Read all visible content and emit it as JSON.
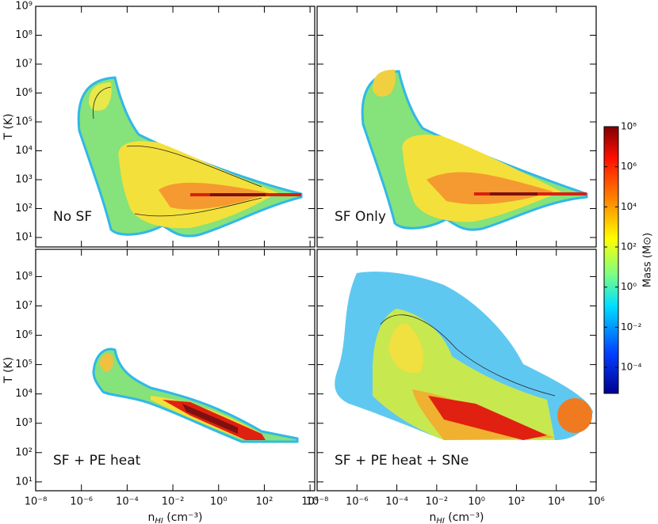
{
  "chart_data": [
    {
      "type": "phase-diagram",
      "label": "No SF",
      "y_label": "T (K)",
      "log": true,
      "xlim": [
        1e-08,
        16000
      ],
      "ylim": [
        4.7,
        1000000000.0
      ],
      "yticks": [
        {
          "value": 10,
          "label": "10¹"
        },
        {
          "value": 100,
          "label": "10²"
        },
        {
          "value": 1000,
          "label": "10³"
        },
        {
          "value": 10000,
          "label": "10⁴"
        },
        {
          "value": 100000,
          "label": "10⁵"
        },
        {
          "value": 1000000,
          "label": "10⁶"
        },
        {
          "value": 10000000,
          "label": "10⁷"
        },
        {
          "value": 100000000,
          "label": "10⁸"
        },
        {
          "value": 1000000000,
          "label": "10⁹"
        }
      ]
    },
    {
      "type": "phase-diagram",
      "label": "SF Only",
      "log": true,
      "xlim": [
        1e-08,
        1000000
      ],
      "ylim": [
        4.7,
        1000000000.0
      ]
    },
    {
      "type": "phase-diagram",
      "label": "SF + PE heat",
      "y_label": "T (K)",
      "log": true,
      "x_label": {
        "symbol": "n",
        "subscript": "HI",
        "unit": " (cm⁻³)"
      },
      "xlim": [
        1e-08,
        16000
      ],
      "ylim": [
        5,
        850000000
      ],
      "xticks": [
        {
          "value": 1e-08,
          "label": "10⁻⁸"
        },
        {
          "value": 1e-06,
          "label": "10⁻⁶"
        },
        {
          "value": 0.0001,
          "label": "10⁻⁴"
        },
        {
          "value": 0.01,
          "label": "10⁻²"
        },
        {
          "value": 1,
          "label": "10⁰"
        },
        {
          "value": 100,
          "label": "10²"
        },
        {
          "value": 10000,
          "label": "10⁴"
        }
      ],
      "yticks": [
        {
          "value": 10,
          "label": "10¹"
        },
        {
          "value": 100,
          "label": "10²"
        },
        {
          "value": 1000,
          "label": "10³"
        },
        {
          "value": 10000,
          "label": "10⁴"
        },
        {
          "value": 100000,
          "label": "10⁵"
        },
        {
          "value": 1000000,
          "label": "10⁶"
        },
        {
          "value": 10000000,
          "label": "10⁷"
        },
        {
          "value": 100000000,
          "label": "10⁸"
        }
      ]
    },
    {
      "type": "phase-diagram",
      "label": "SF + PE heat + SNe",
      "log": true,
      "x_label": {
        "symbol": "n",
        "subscript": "HI",
        "unit": " (cm⁻³)"
      },
      "xlim": [
        1e-08,
        1000000
      ],
      "ylim": [
        5,
        850000000
      ],
      "xticks": [
        {
          "value": 1e-08,
          "label": "10⁻⁸"
        },
        {
          "value": 1e-06,
          "label": "10⁻⁶"
        },
        {
          "value": 0.0001,
          "label": "10⁻⁴"
        },
        {
          "value": 0.01,
          "label": "10⁻²"
        },
        {
          "value": 1,
          "label": "10⁰"
        },
        {
          "value": 100,
          "label": "10²"
        },
        {
          "value": 10000,
          "label": "10⁴"
        },
        {
          "value": 1000000,
          "label": "10⁶"
        }
      ]
    }
  ],
  "colorbar": {
    "label": "Mass (M⊙)",
    "log": true,
    "ylim": [
      5e-06,
      100000000
    ],
    "yticks": [
      {
        "value": 0.0001,
        "label": "10⁻⁴"
      },
      {
        "value": 0.01,
        "label": "10⁻²"
      },
      {
        "value": 1,
        "label": "10⁰"
      },
      {
        "value": 100,
        "label": "10²"
      },
      {
        "value": 10000,
        "label": "10⁴"
      },
      {
        "value": 1000000,
        "label": "10⁶"
      },
      {
        "value": 100000000,
        "label": "10⁸"
      }
    ]
  }
}
